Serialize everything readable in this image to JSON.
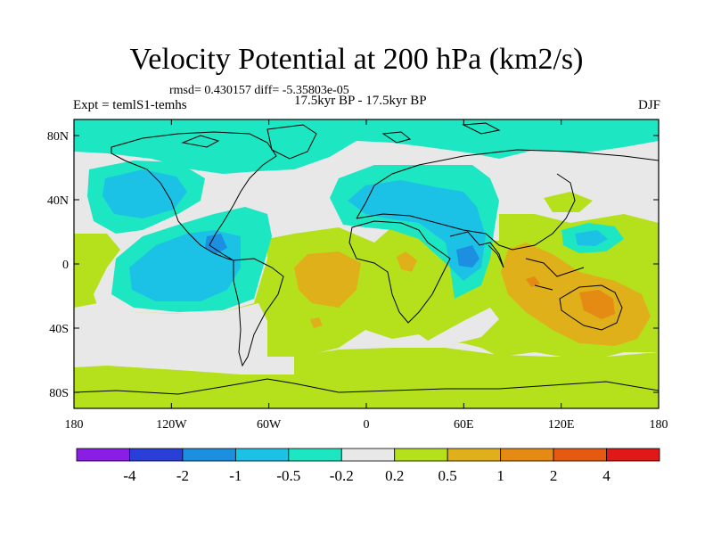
{
  "title": "Velocity Potential at 200 hPa (km2/s)",
  "stats_line": "rmsd= 0.430157 diff= -5.35803e-05",
  "experiment": "Expt = temlS1-temhs",
  "period": "17.5kyr BP - 17.5kyr BP",
  "season": "DJF",
  "colors": {
    "c_m4": "#8a1ee6",
    "c_m2": "#2a3fd8",
    "c_m1": "#1c8fe0",
    "c_m05": "#1cc2e6",
    "c_m02": "#1de6c2",
    "c_0": "#e8e8e8",
    "c_02": "#b5e01c",
    "c_05": "#e0b01a",
    "c_1": "#e58a12",
    "c_2": "#e55a10",
    "c_4": "#e01818"
  },
  "chart_data": {
    "type": "contour-map",
    "variable": "Velocity Potential at 200 hPa",
    "units": "km2/s",
    "xticks": [
      {
        "lon": -180,
        "label": "180"
      },
      {
        "lon": -120,
        "label": "120W"
      },
      {
        "lon": -60,
        "label": "60W"
      },
      {
        "lon": 0,
        "label": "0"
      },
      {
        "lon": 60,
        "label": "60E"
      },
      {
        "lon": 120,
        "label": "120E"
      },
      {
        "lon": 180,
        "label": "180"
      }
    ],
    "yticks": [
      {
        "lat": 80,
        "label": "80N"
      },
      {
        "lat": 40,
        "label": "40N"
      },
      {
        "lat": 0,
        "label": "0"
      },
      {
        "lat": -40,
        "label": "40S"
      },
      {
        "lat": -80,
        "label": "80S"
      }
    ],
    "xlim": [
      -180,
      180
    ],
    "ylim": [
      -90,
      90
    ],
    "contour_levels": [
      "-4",
      "-2",
      "-1",
      "-0.5",
      "-0.2",
      "0.2",
      "0.5",
      "1",
      "2",
      "4"
    ],
    "colorbar_colors": [
      "c_m4",
      "c_m2",
      "c_m1",
      "c_m05",
      "c_m02",
      "c_0",
      "c_02",
      "c_05",
      "c_1",
      "c_2",
      "c_4"
    ]
  }
}
